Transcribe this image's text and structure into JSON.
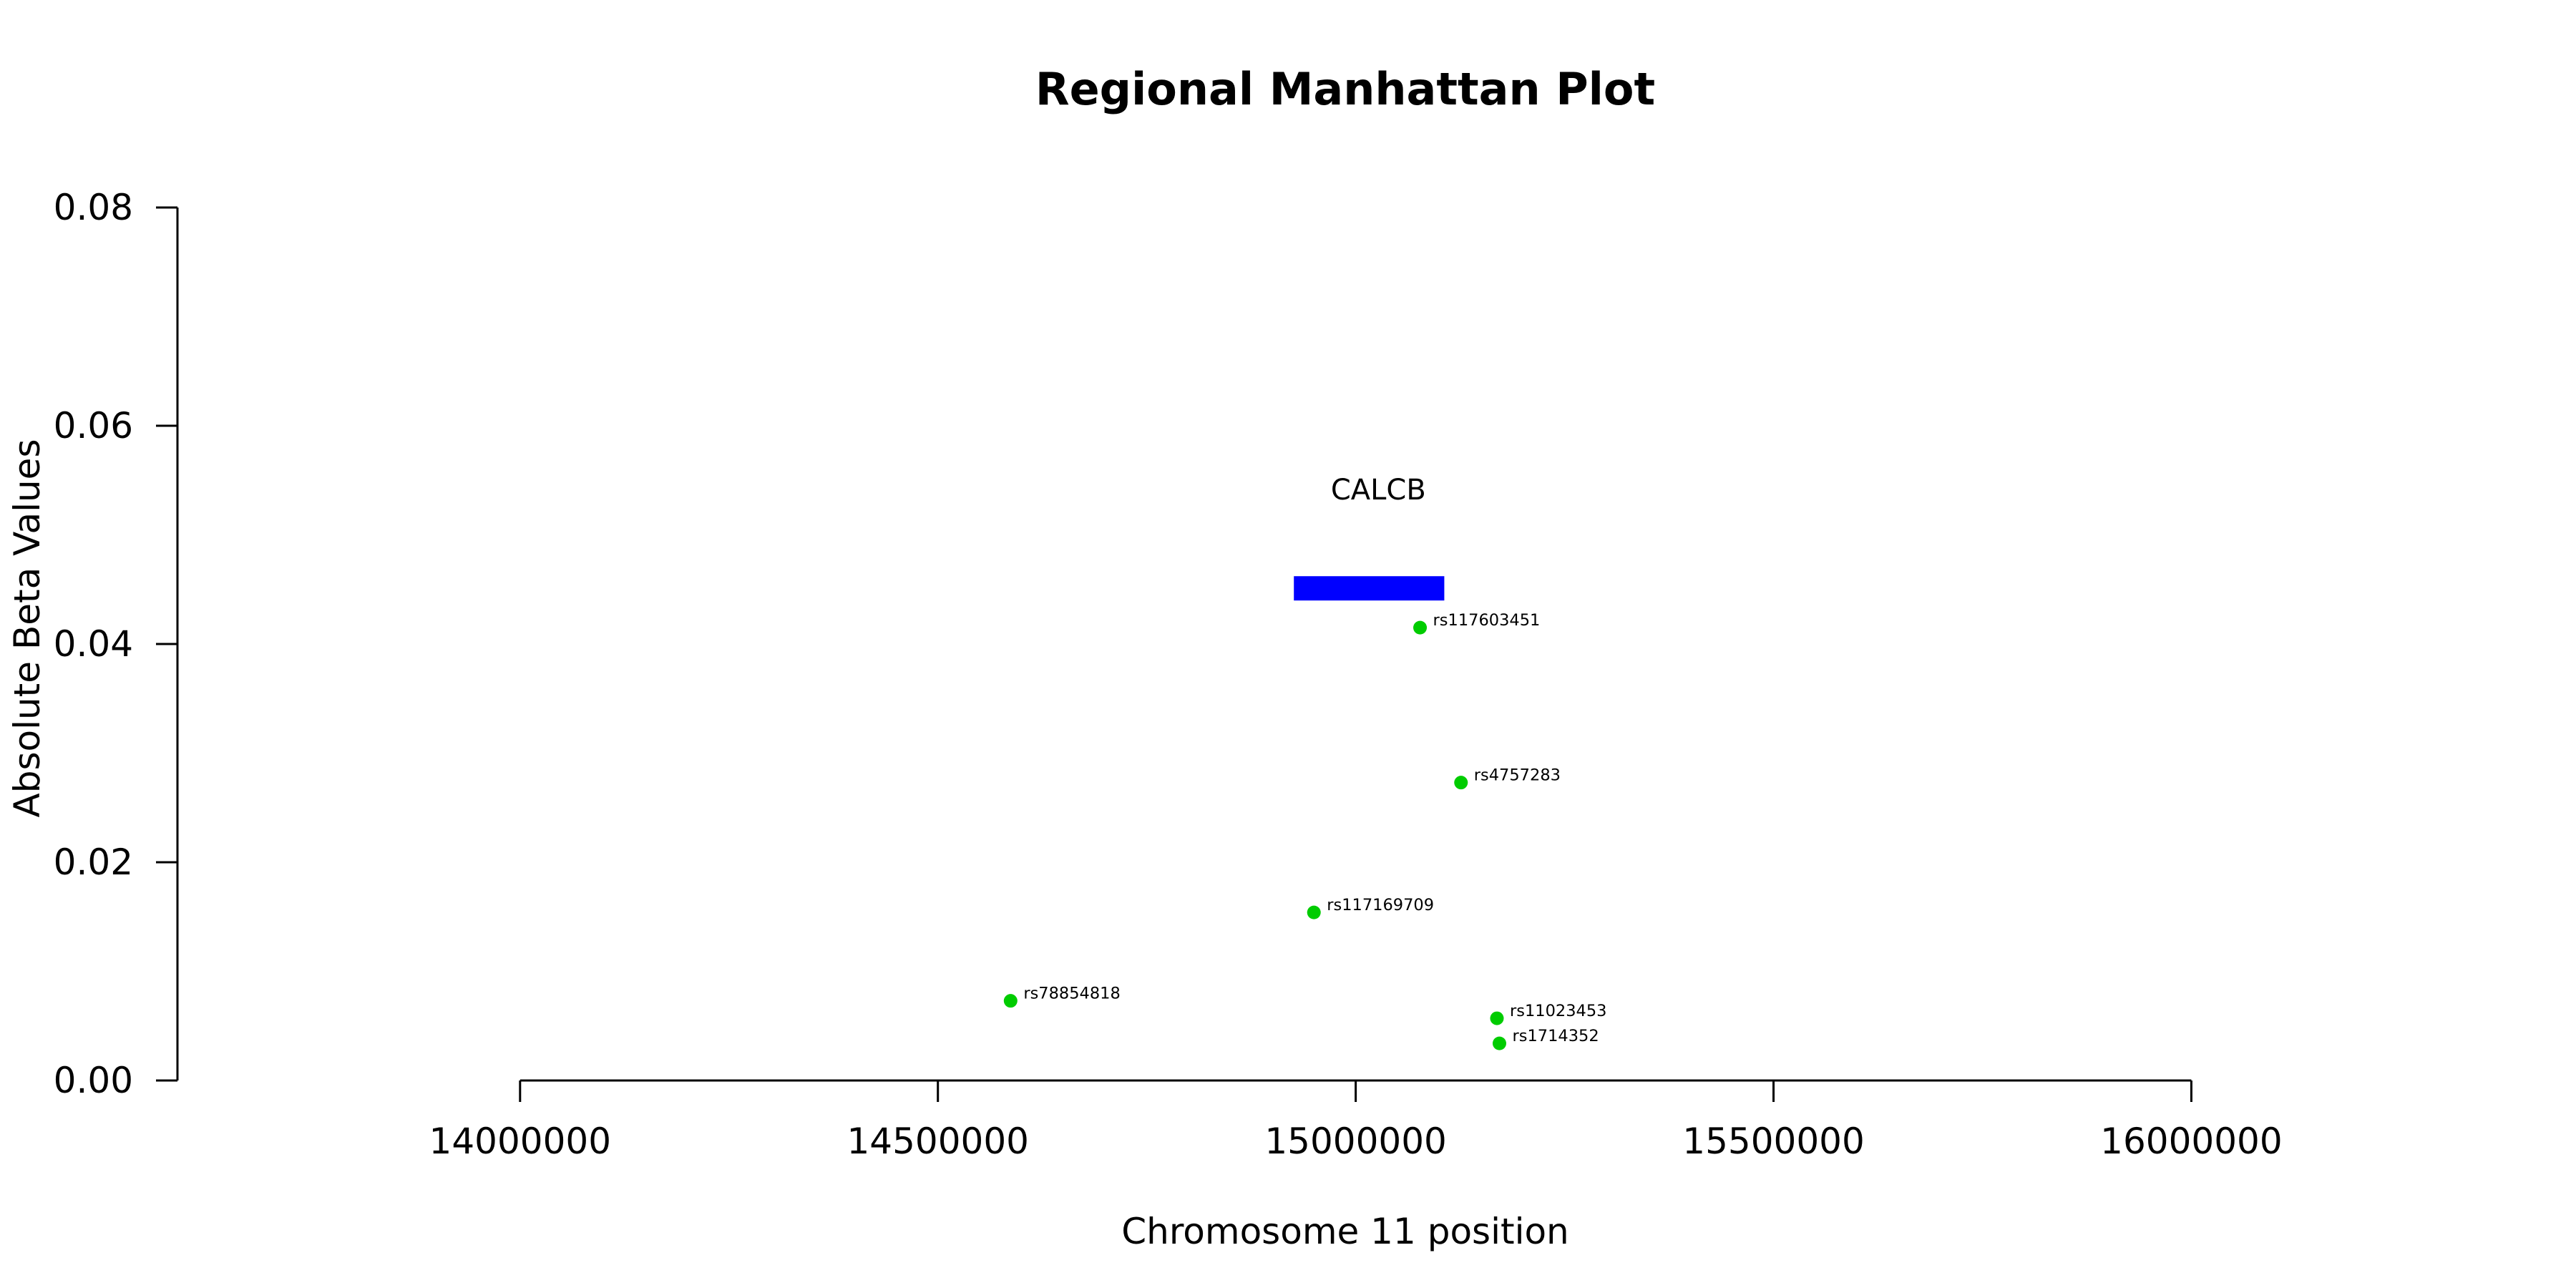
{
  "chart_data": {
    "type": "scatter",
    "title": "Regional Manhattan Plot",
    "xlabel": "Chromosome 11 position",
    "ylabel": "Absolute Beta Values",
    "xlim": [
      13590000,
      16200000
    ],
    "ylim": [
      0,
      0.08
    ],
    "x_ticks": [
      14000000,
      14500000,
      15000000,
      15500000,
      16000000
    ],
    "y_ticks": [
      0.0,
      0.02,
      0.04,
      0.06,
      0.08
    ],
    "x_tick_labels": [
      "14000000",
      "14500000",
      "15000000",
      "15500000",
      "16000000"
    ],
    "y_tick_labels": [
      "0.00",
      "0.02",
      "0.04",
      "0.06",
      "0.08"
    ],
    "grid": false,
    "point_color": "#00cc00",
    "points": [
      {
        "label": "rs117603451",
        "x": 15077000,
        "y": 0.0415
      },
      {
        "label": "rs4757283",
        "x": 15126000,
        "y": 0.0273
      },
      {
        "label": "rs117169709",
        "x": 14950000,
        "y": 0.0154
      },
      {
        "label": "rs78854818",
        "x": 14587000,
        "y": 0.0073
      },
      {
        "label": "rs11023453",
        "x": 15169000,
        "y": 0.0057
      },
      {
        "label": "rs1714352",
        "x": 15172000,
        "y": 0.0034
      }
    ],
    "genes": [
      {
        "name": "CALCB",
        "start": 14926000,
        "end": 15106000,
        "y": 0.0451,
        "color": "#0000ff"
      }
    ]
  }
}
